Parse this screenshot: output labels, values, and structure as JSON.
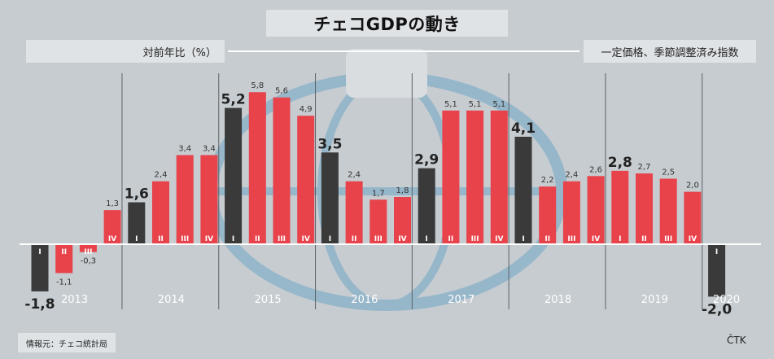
{
  "title": "チェコGDPの動き",
  "subtitle_left": "対前年比（%）",
  "subtitle_right": "一定価格、季節調整済み指数",
  "source": "情報元：チェコ統計局",
  "agency": "ČTK",
  "colors": {
    "highlight": "#3a3a3a",
    "normal": "#e8424a",
    "background": "#c6ccd0"
  },
  "chart_data": {
    "type": "bar",
    "years": [
      "2013",
      "2014",
      "2015",
      "2016",
      "2017",
      "2018",
      "2019",
      "2020"
    ],
    "quarters": [
      {
        "year": "2013",
        "q": "I",
        "value": -1.8,
        "label": "-1,8",
        "highlight": true
      },
      {
        "year": "2013",
        "q": "II",
        "value": -1.1,
        "label": "-1,1",
        "highlight": false
      },
      {
        "year": "2013",
        "q": "III",
        "value": -0.3,
        "label": "-0,3",
        "highlight": false
      },
      {
        "year": "2013",
        "q": "IV",
        "value": 1.3,
        "label": "1,3",
        "highlight": false
      },
      {
        "year": "2014",
        "q": "I",
        "value": 1.6,
        "label": "1,6",
        "highlight": true
      },
      {
        "year": "2014",
        "q": "II",
        "value": 2.4,
        "label": "2,4",
        "highlight": false
      },
      {
        "year": "2014",
        "q": "III",
        "value": 3.4,
        "label": "3,4",
        "highlight": false
      },
      {
        "year": "2014",
        "q": "IV",
        "value": 3.4,
        "label": "3,4",
        "highlight": false
      },
      {
        "year": "2015",
        "q": "I",
        "value": 5.2,
        "label": "5,2",
        "highlight": true
      },
      {
        "year": "2015",
        "q": "II",
        "value": 5.8,
        "label": "5,8",
        "highlight": false
      },
      {
        "year": "2015",
        "q": "III",
        "value": 5.6,
        "label": "5,6",
        "highlight": false
      },
      {
        "year": "2015",
        "q": "IV",
        "value": 4.9,
        "label": "4,9",
        "highlight": false
      },
      {
        "year": "2016",
        "q": "I",
        "value": 3.5,
        "label": "3,5",
        "highlight": true
      },
      {
        "year": "2016",
        "q": "II",
        "value": 2.4,
        "label": "2,4",
        "highlight": false
      },
      {
        "year": "2016",
        "q": "III",
        "value": 1.7,
        "label": "1,7",
        "highlight": false
      },
      {
        "year": "2016",
        "q": "IV",
        "value": 1.8,
        "label": "1,8",
        "highlight": false
      },
      {
        "year": "2017",
        "q": "I",
        "value": 2.9,
        "label": "2,9",
        "highlight": true
      },
      {
        "year": "2017",
        "q": "II",
        "value": 5.1,
        "label": "5,1",
        "highlight": false
      },
      {
        "year": "2017",
        "q": "III",
        "value": 5.1,
        "label": "5,1",
        "highlight": false
      },
      {
        "year": "2017",
        "q": "IV",
        "value": 5.1,
        "label": "5,1",
        "highlight": false
      },
      {
        "year": "2018",
        "q": "I",
        "value": 4.1,
        "label": "4,1",
        "highlight": true
      },
      {
        "year": "2018",
        "q": "II",
        "value": 2.2,
        "label": "2,2",
        "highlight": false
      },
      {
        "year": "2018",
        "q": "III",
        "value": 2.4,
        "label": "2,4",
        "highlight": false
      },
      {
        "year": "2018",
        "q": "IV",
        "value": 2.6,
        "label": "2,6",
        "highlight": false
      },
      {
        "year": "2019",
        "q": "I",
        "value": 2.8,
        "label": "2,8",
        "highlight": false
      },
      {
        "year": "2019",
        "q": "II",
        "value": 2.7,
        "label": "2,7",
        "highlight": false
      },
      {
        "year": "2019",
        "q": "III",
        "value": 2.5,
        "label": "2,5",
        "highlight": false
      },
      {
        "year": "2019",
        "q": "IV",
        "value": 2.0,
        "label": "2,0",
        "highlight": false
      },
      {
        "year": "2020",
        "q": "I",
        "value": -2.0,
        "label": "-2,0",
        "highlight": true
      }
    ],
    "ylim": [
      -2.0,
      5.8
    ],
    "grid": false,
    "legend": "none"
  }
}
